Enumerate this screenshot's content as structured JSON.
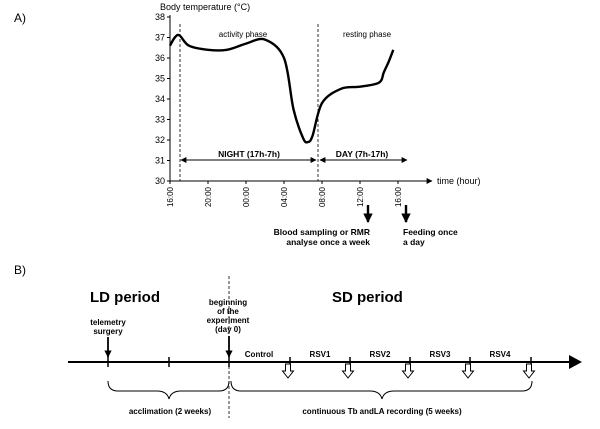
{
  "panel_a": {
    "label": "A)",
    "y_axis_title": "Body temperature (°C)",
    "x_axis_title": "time (hour)",
    "phase_activity": "activity phase",
    "phase_resting": "resting phase",
    "night_label": "NIGHT (17h-7h)",
    "day_label": "DAY (7h-17h)",
    "note_blood_1": "Blood sampling or RMR",
    "note_blood_2": "analyse once a week",
    "note_feed_1": "Feeding once",
    "note_feed_2": "a day"
  },
  "panel_b": {
    "label": "B)",
    "ld_title": "LD period",
    "sd_title": "SD period",
    "telemetry_1": "telemetry",
    "telemetry_2": "surgery",
    "begin_1": "beginning",
    "begin_2": "of the",
    "begin_3": "experiment",
    "begin_4": "(day 0)",
    "control": "Control",
    "rsv1": "RSV1",
    "rsv2": "RSV2",
    "rsv3": "RSV3",
    "rsv4": "RSV4",
    "acclimation": "acclimation (2 weeks)",
    "continuous": "continuous Tb andLA recording (5 weeks)"
  },
  "chart_data": {
    "type": "line",
    "ylabel": "Body temperature (°C)",
    "xlabel": "time (hour)",
    "ylim": [
      30,
      38
    ],
    "y_ticks": [
      "30",
      "31",
      "32",
      "33",
      "34",
      "35",
      "36",
      "37",
      "38"
    ],
    "x_ticks": [
      "16:00",
      "20:00",
      "00:00",
      "04:00",
      "08:00",
      "12:00",
      "16:00"
    ],
    "series": [
      {
        "x": [
          16,
          16.5,
          17,
          18,
          20,
          22,
          24,
          26,
          28,
          29,
          30,
          30.5,
          31,
          32,
          34,
          36,
          38,
          38.5,
          39,
          39.5
        ],
        "values": [
          36.6,
          37.0,
          37.1,
          36.6,
          36.4,
          36.4,
          36.7,
          36.9,
          36.0,
          33.5,
          32.1,
          31.9,
          32.2,
          33.8,
          34.5,
          34.6,
          34.8,
          35.3,
          35.8,
          36.4
        ]
      }
    ]
  }
}
